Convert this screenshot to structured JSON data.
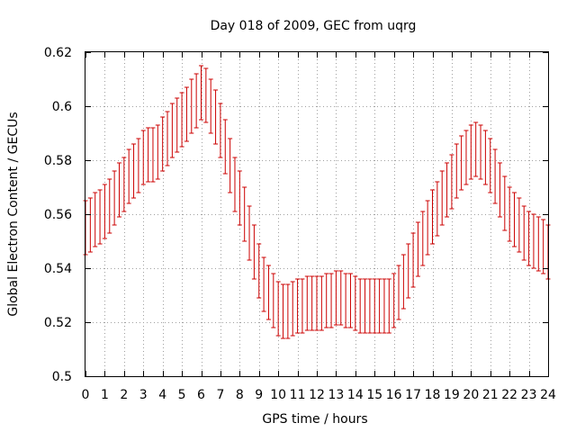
{
  "chart_data": {
    "type": "scatter",
    "title": "Day 018 of 2009, GEC from uqrg",
    "xlabel": "GPS time / hours",
    "ylabel": "Global Electron Content / GECUs",
    "xlim": [
      0,
      24
    ],
    "ylim": [
      0.5,
      0.62
    ],
    "xticks": [
      0,
      1,
      2,
      3,
      4,
      5,
      6,
      7,
      8,
      9,
      10,
      11,
      12,
      13,
      14,
      15,
      16,
      17,
      18,
      19,
      20,
      21,
      22,
      23,
      24
    ],
    "xtick_labels": [
      "0",
      "1",
      "2",
      "3",
      "4",
      "5",
      "6",
      "7",
      "8",
      "9",
      "10",
      "11",
      "12",
      "13",
      "14",
      "15",
      "16",
      "17",
      "18",
      "19",
      "20",
      "21",
      "22",
      "23",
      "24"
    ],
    "yticks": [
      0.5,
      0.52,
      0.54,
      0.56,
      0.58,
      0.6,
      0.62
    ],
    "ytick_labels": [
      "0.5",
      "0.52",
      "0.54",
      "0.56",
      "0.58",
      "0.6",
      "0.62"
    ],
    "grid": true,
    "error": 0.01,
    "color": "#cc0000",
    "series": [
      {
        "name": "GEC",
        "x": [
          0,
          0.25,
          0.5,
          0.75,
          1,
          1.25,
          1.5,
          1.75,
          2,
          2.25,
          2.5,
          2.75,
          3,
          3.25,
          3.5,
          3.75,
          4,
          4.25,
          4.5,
          4.75,
          5,
          5.25,
          5.5,
          5.75,
          6,
          6.25,
          6.5,
          6.75,
          7,
          7.25,
          7.5,
          7.75,
          8,
          8.25,
          8.5,
          8.75,
          9,
          9.25,
          9.5,
          9.75,
          10,
          10.25,
          10.5,
          10.75,
          11,
          11.25,
          11.5,
          11.75,
          12,
          12.25,
          12.5,
          12.75,
          13,
          13.25,
          13.5,
          13.75,
          14,
          14.25,
          14.5,
          14.75,
          15,
          15.25,
          15.5,
          15.75,
          16,
          16.25,
          16.5,
          16.75,
          17,
          17.25,
          17.5,
          17.75,
          18,
          18.25,
          18.5,
          18.75,
          19,
          19.25,
          19.5,
          19.75,
          20,
          20.25,
          20.5,
          20.75,
          21,
          21.25,
          21.5,
          21.75,
          22,
          22.25,
          22.5,
          22.75,
          23,
          23.25,
          23.5,
          23.75,
          24
        ],
        "y": [
          0.555,
          0.556,
          0.558,
          0.559,
          0.561,
          0.563,
          0.566,
          0.569,
          0.571,
          0.574,
          0.576,
          0.578,
          0.581,
          0.582,
          0.582,
          0.583,
          0.586,
          0.588,
          0.591,
          0.593,
          0.595,
          0.597,
          0.6,
          0.602,
          0.605,
          0.604,
          0.6,
          0.596,
          0.591,
          0.585,
          0.578,
          0.571,
          0.566,
          0.56,
          0.553,
          0.546,
          0.539,
          0.534,
          0.531,
          0.528,
          0.525,
          0.524,
          0.524,
          0.525,
          0.526,
          0.526,
          0.527,
          0.527,
          0.527,
          0.527,
          0.528,
          0.528,
          0.529,
          0.529,
          0.528,
          0.528,
          0.527,
          0.526,
          0.526,
          0.526,
          0.526,
          0.526,
          0.526,
          0.526,
          0.528,
          0.531,
          0.535,
          0.539,
          0.543,
          0.547,
          0.551,
          0.555,
          0.559,
          0.562,
          0.566,
          0.569,
          0.572,
          0.576,
          0.579,
          0.581,
          0.583,
          0.584,
          0.583,
          0.581,
          0.578,
          0.574,
          0.569,
          0.564,
          0.56,
          0.558,
          0.556,
          0.553,
          0.551,
          0.55,
          0.549,
          0.548,
          0.546
        ]
      }
    ]
  }
}
